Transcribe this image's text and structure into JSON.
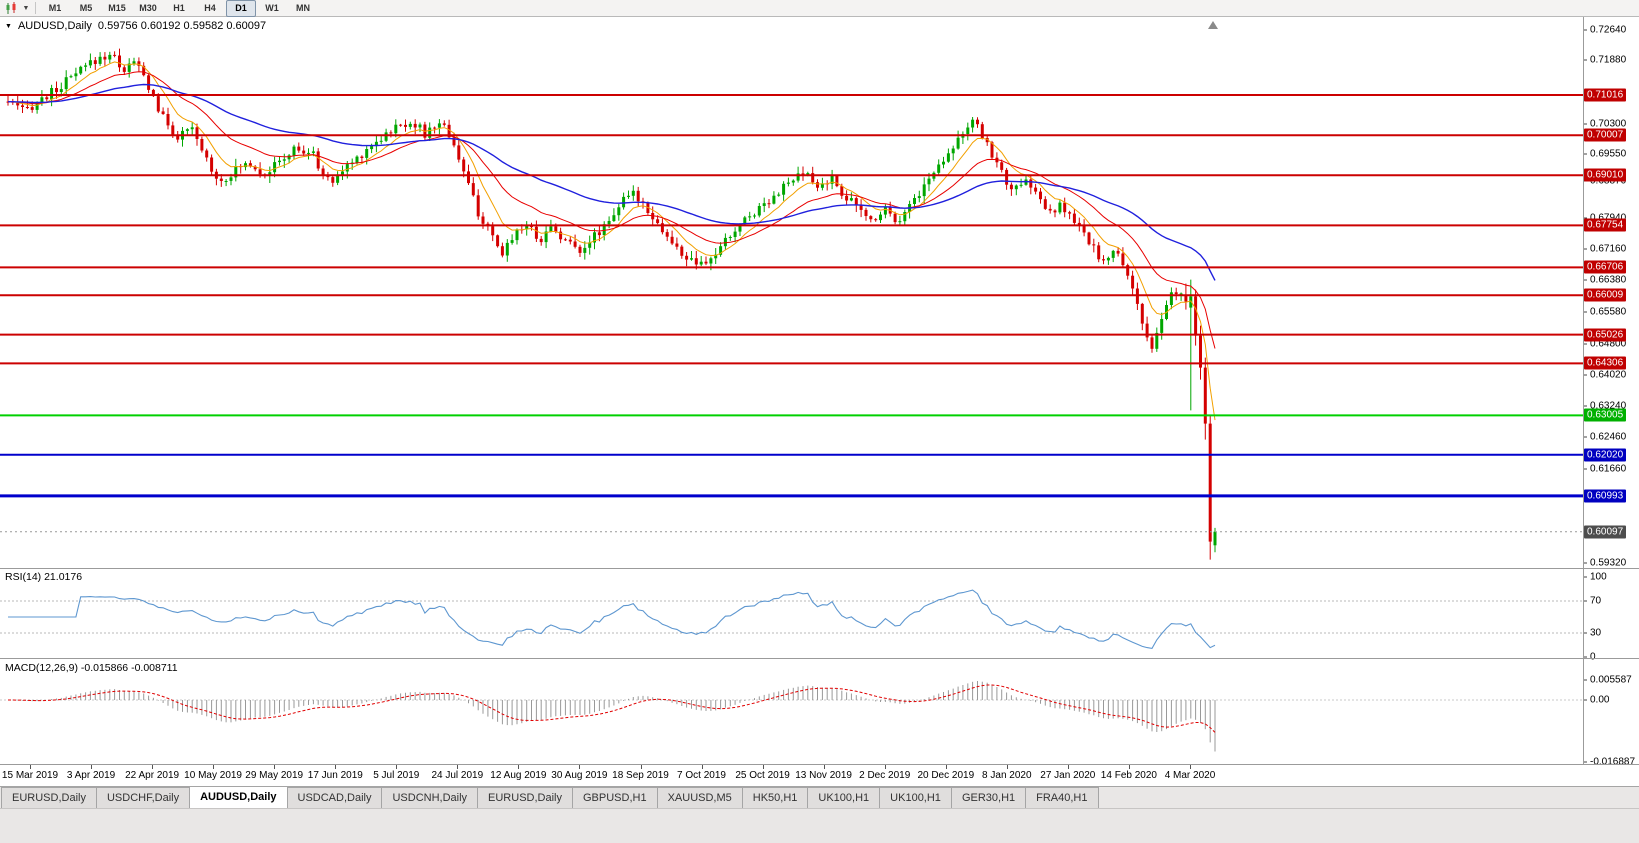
{
  "toolbar": {
    "timeframes": [
      "M1",
      "M5",
      "M15",
      "M30",
      "H1",
      "H4",
      "D1",
      "W1",
      "MN"
    ],
    "active_timeframe": "D1"
  },
  "chart": {
    "symbol": "AUDUSD,Daily",
    "ohlc_text": "0.59756 0.60192 0.59582 0.60097",
    "open": "0.59756",
    "high": "0.60192",
    "low": "0.59582",
    "close": "0.60097",
    "current_price": "0.60097",
    "price_axis_labels": [
      "0.72640",
      "0.71880",
      "0.70300",
      "0.69550",
      "0.68870",
      "0.67940",
      "0.67160",
      "0.66380",
      "0.65580",
      "0.64800",
      "0.64020",
      "0.63240",
      "0.62460",
      "0.61660",
      "0.59320"
    ],
    "levels": [
      {
        "price": "0.71016",
        "color": "red",
        "width": 2
      },
      {
        "price": "0.70007",
        "color": "red",
        "width": 2
      },
      {
        "price": "0.69010",
        "color": "red",
        "width": 2
      },
      {
        "price": "0.67754",
        "color": "red",
        "width": 2
      },
      {
        "price": "0.66706",
        "color": "red",
        "width": 2
      },
      {
        "price": "0.66009",
        "color": "red",
        "width": 2
      },
      {
        "price": "0.65026",
        "color": "red",
        "width": 2
      },
      {
        "price": "0.64306",
        "color": "red",
        "width": 2
      },
      {
        "price": "0.63005",
        "color": "green",
        "width": 2
      },
      {
        "price": "0.62020",
        "color": "blue",
        "width": 2
      },
      {
        "price": "0.60993",
        "color": "blue",
        "width": 3
      }
    ],
    "colors": {
      "up": "#00a600",
      "down": "#d40000",
      "ma_fast": "#f2a000",
      "ma_mid": "#e80000",
      "ma_slow": "#2020dd",
      "level_red": "#cc0000",
      "level_green": "#00d000",
      "level_blue": "#0000cc",
      "badge_red": "#c00000",
      "badge_green": "#00b000",
      "badge_blue": "#0000c0",
      "current_badge": "#4d4d4d",
      "rsi_line": "#5e97d0",
      "macd_hist": "#999999",
      "macd_signal": "#e00000"
    },
    "dates": [
      "15 Mar 2019",
      "3 Apr 2019",
      "22 Apr 2019",
      "10 May 2019",
      "29 May 2019",
      "17 Jun 2019",
      "5 Jul 2019",
      "24 Jul 2019",
      "12 Aug 2019",
      "30 Aug 2019",
      "18 Sep 2019",
      "7 Oct 2019",
      "25 Oct 2019",
      "13 Nov 2019",
      "2 Dec 2019",
      "20 Dec 2019",
      "8 Jan 2020",
      "27 Jan 2020",
      "14 Feb 2020",
      "4 Mar 2020"
    ],
    "candle_count": 250,
    "price_anchors": [
      [
        0.0,
        0.7085
      ],
      [
        0.012,
        0.706
      ],
      [
        0.025,
        0.7085
      ],
      [
        0.04,
        0.7115
      ],
      [
        0.055,
        0.715
      ],
      [
        0.07,
        0.7185
      ],
      [
        0.085,
        0.7205
      ],
      [
        0.096,
        0.7165
      ],
      [
        0.106,
        0.7185
      ],
      [
        0.116,
        0.7125
      ],
      [
        0.128,
        0.7045
      ],
      [
        0.14,
        0.6995
      ],
      [
        0.152,
        0.7015
      ],
      [
        0.163,
        0.695
      ],
      [
        0.175,
        0.6885
      ],
      [
        0.187,
        0.691
      ],
      [
        0.199,
        0.6935
      ],
      [
        0.212,
        0.6905
      ],
      [
        0.224,
        0.693
      ],
      [
        0.237,
        0.6965
      ],
      [
        0.252,
        0.6955
      ],
      [
        0.266,
        0.688
      ],
      [
        0.282,
        0.6925
      ],
      [
        0.3,
        0.6975
      ],
      [
        0.318,
        0.7015
      ],
      [
        0.335,
        0.7038
      ],
      [
        0.346,
        0.7
      ],
      [
        0.358,
        0.7038
      ],
      [
        0.369,
        0.6985
      ],
      [
        0.379,
        0.6895
      ],
      [
        0.39,
        0.6805
      ],
      [
        0.4,
        0.6748
      ],
      [
        0.409,
        0.67
      ],
      [
        0.419,
        0.6757
      ],
      [
        0.429,
        0.678
      ],
      [
        0.441,
        0.674
      ],
      [
        0.451,
        0.6775
      ],
      [
        0.463,
        0.6732
      ],
      [
        0.474,
        0.6718
      ],
      [
        0.486,
        0.6748
      ],
      [
        0.497,
        0.6788
      ],
      [
        0.508,
        0.6832
      ],
      [
        0.519,
        0.6855
      ],
      [
        0.53,
        0.6818
      ],
      [
        0.541,
        0.6768
      ],
      [
        0.553,
        0.6718
      ],
      [
        0.564,
        0.669
      ],
      [
        0.576,
        0.667
      ],
      [
        0.587,
        0.6708
      ],
      [
        0.599,
        0.6752
      ],
      [
        0.611,
        0.6792
      ],
      [
        0.623,
        0.6822
      ],
      [
        0.636,
        0.6856
      ],
      [
        0.649,
        0.6886
      ],
      [
        0.661,
        0.6905
      ],
      [
        0.671,
        0.6868
      ],
      [
        0.681,
        0.6895
      ],
      [
        0.692,
        0.6855
      ],
      [
        0.703,
        0.682
      ],
      [
        0.715,
        0.6788
      ],
      [
        0.727,
        0.682
      ],
      [
        0.737,
        0.6788
      ],
      [
        0.747,
        0.6825
      ],
      [
        0.757,
        0.6866
      ],
      [
        0.768,
        0.6912
      ],
      [
        0.779,
        0.6962
      ],
      [
        0.791,
        0.7008
      ],
      [
        0.8,
        0.7032
      ],
      [
        0.809,
        0.6992
      ],
      [
        0.818,
        0.6938
      ],
      [
        0.827,
        0.6885
      ],
      [
        0.836,
        0.6862
      ],
      [
        0.845,
        0.6888
      ],
      [
        0.855,
        0.684
      ],
      [
        0.864,
        0.68
      ],
      [
        0.873,
        0.6827
      ],
      [
        0.882,
        0.6788
      ],
      [
        0.891,
        0.6752
      ],
      [
        0.9,
        0.6715
      ],
      [
        0.909,
        0.668
      ],
      [
        0.917,
        0.6712
      ],
      [
        0.925,
        0.6672
      ],
      [
        0.933,
        0.6615
      ],
      [
        0.94,
        0.653
      ],
      [
        0.947,
        0.645
      ],
      [
        0.955,
        0.653
      ],
      [
        0.962,
        0.66
      ],
      [
        0.972,
        0.6605
      ]
    ],
    "final_candles": [
      [
        0.66,
        0.663,
        0.6565,
        0.6585
      ],
      [
        0.657,
        0.664,
        0.6313,
        0.6598
      ],
      [
        0.6598,
        0.6615,
        0.6475,
        0.65
      ],
      [
        0.65,
        0.6525,
        0.639,
        0.642
      ],
      [
        0.642,
        0.6445,
        0.624,
        0.628
      ],
      [
        0.628,
        0.63,
        0.594,
        0.5985
      ],
      [
        0.59756,
        0.60192,
        0.59582,
        0.60097
      ]
    ]
  },
  "rsi": {
    "label_text": "RSI(14) 21.0176",
    "name": "RSI(14)",
    "value": "21.0176",
    "axis": [
      "100",
      "70",
      "30",
      "0"
    ],
    "level_lines": [
      70,
      30
    ]
  },
  "macd": {
    "label_text": "MACD(12,26,9) -0.015866 -0.008711",
    "name": "MACD(12,26,9)",
    "main_value": "-0.015866",
    "signal_value": "-0.008711",
    "axis": [
      "0.005587",
      "0.00",
      "-0.016887"
    ]
  },
  "tabs": [
    "EURUSD,Daily",
    "USDCHF,Daily",
    "AUDUSD,Daily",
    "USDCAD,Daily",
    "USDCNH,Daily",
    "EURUSD,Daily",
    "GBPUSD,H1",
    "XAUUSD,M5",
    "HK50,H1",
    "UK100,H1",
    "UK100,H1",
    "GER30,H1",
    "FRA40,H1"
  ],
  "active_tab_index": 2
}
